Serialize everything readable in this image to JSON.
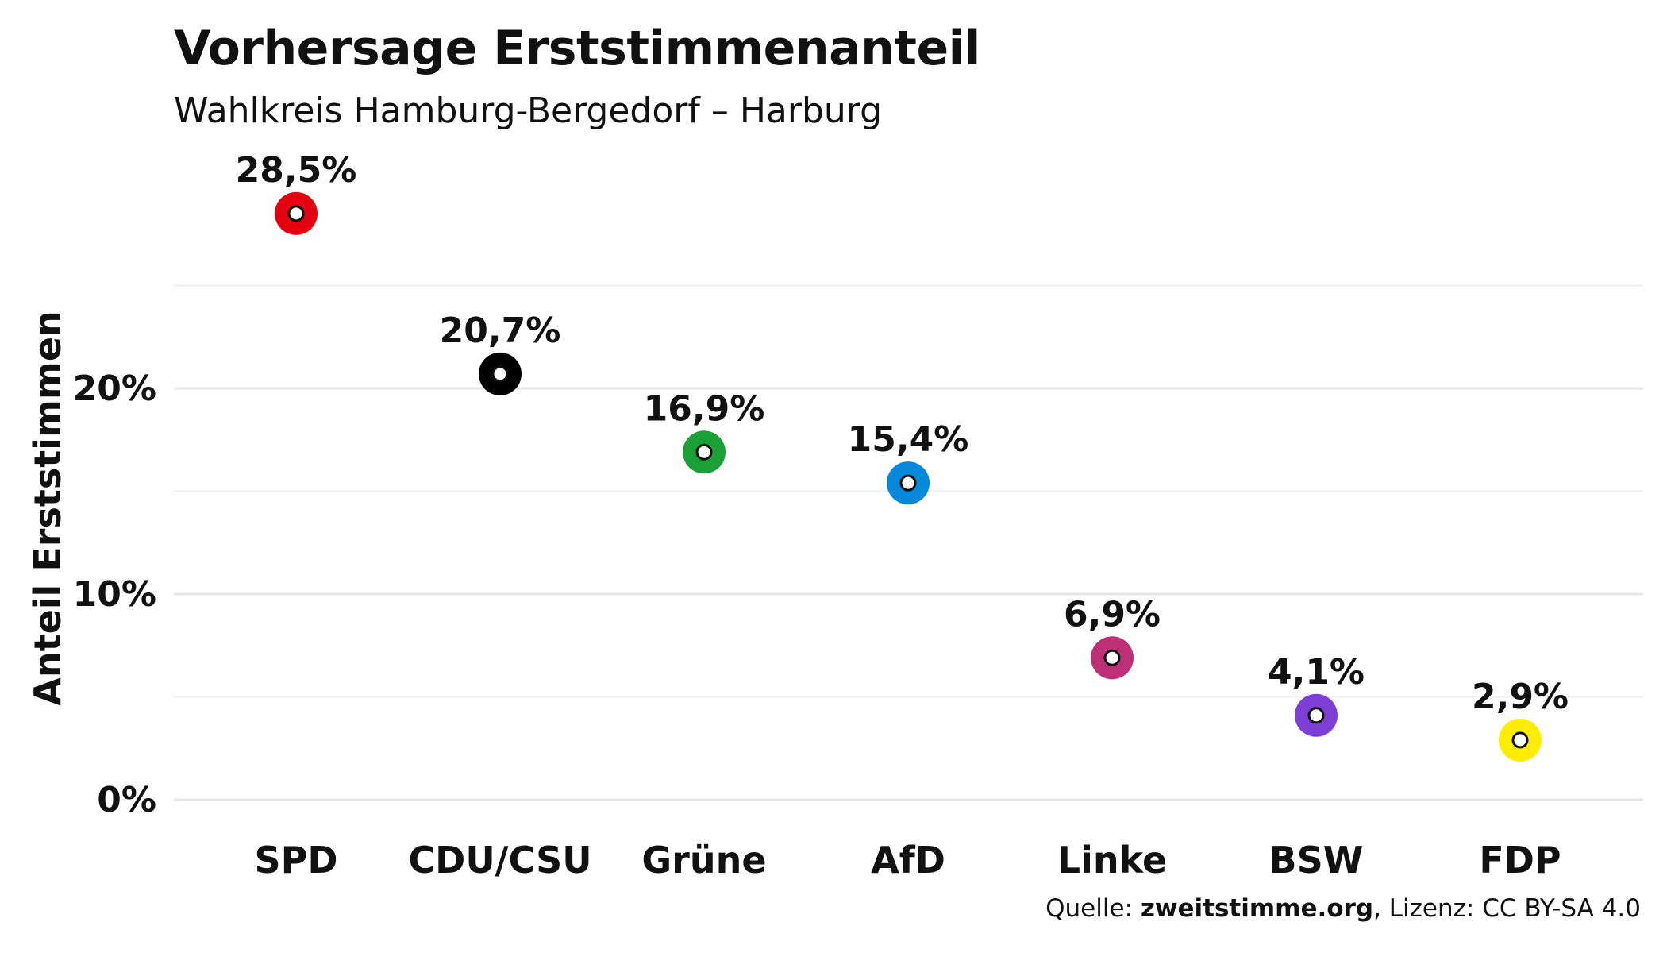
{
  "header": {
    "title": "Vorhersage Erststimmenanteil",
    "subtitle": "Wahlkreis Hamburg-Bergedorf – Harburg"
  },
  "source": {
    "prefix": "Quelle: ",
    "site": "zweitstimme.org",
    "suffix": ", Lizenz: CC BY-SA 4.0"
  },
  "chart_data": {
    "type": "scatter",
    "title": "Vorhersage Erststimmenanteil",
    "subtitle": "Wahlkreis Hamburg-Bergedorf – Harburg",
    "xlabel": "",
    "ylabel": "Anteil Erststimmen",
    "ylim": [
      0,
      30
    ],
    "yticks": [
      0,
      10,
      20
    ],
    "ytick_labels": [
      "0%",
      "10%",
      "20%"
    ],
    "grid": true,
    "legend": "none",
    "categories": [
      "SPD",
      "CDU/CSU",
      "Grüne",
      "AfD",
      "Linke",
      "BSW",
      "FDP"
    ],
    "values": [
      28.5,
      20.7,
      16.9,
      15.4,
      6.9,
      4.1,
      2.9
    ],
    "labels": [
      "28,5%",
      "20,7%",
      "16,9%",
      "15,4%",
      "6,9%",
      "4,1%",
      "2,9%"
    ],
    "colors": [
      "#e3000f",
      "#000000",
      "#1aa037",
      "#0489db",
      "#be3075",
      "#7d3ed6",
      "#ffed00"
    ]
  }
}
